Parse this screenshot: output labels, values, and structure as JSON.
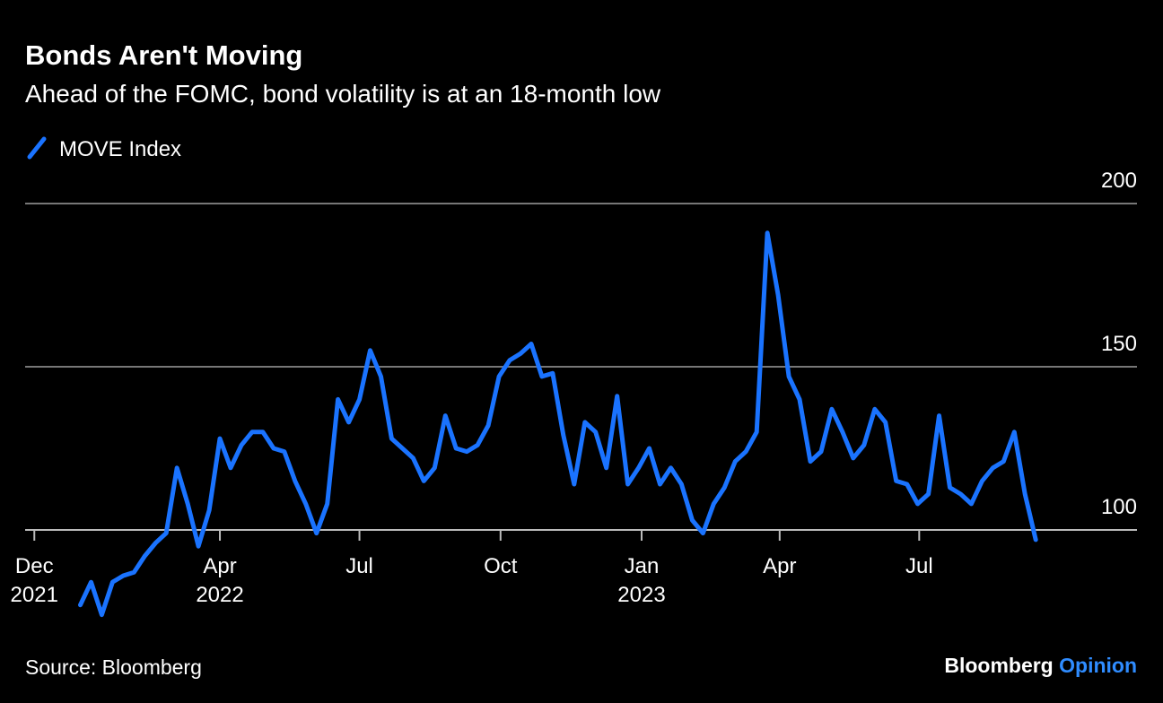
{
  "chart_data": {
    "type": "line",
    "title": "Bonds Aren't Moving",
    "subtitle": "Ahead of the FOMC, bond volatility is at an 18-month low",
    "source": "Source: Bloomberg",
    "brand": [
      "Bloomberg",
      "Opinion"
    ],
    "x": [
      "2021-12-31",
      "2022-01-07",
      "2022-01-14",
      "2022-01-21",
      "2022-01-28",
      "2022-02-04",
      "2022-02-11",
      "2022-02-18",
      "2022-02-25",
      "2022-03-04",
      "2022-03-11",
      "2022-03-18",
      "2022-03-25",
      "2022-04-01",
      "2022-04-08",
      "2022-04-15",
      "2022-04-22",
      "2022-04-29",
      "2022-05-06",
      "2022-05-13",
      "2022-05-20",
      "2022-05-27",
      "2022-06-03",
      "2022-06-10",
      "2022-06-17",
      "2022-06-24",
      "2022-07-01",
      "2022-07-08",
      "2022-07-15",
      "2022-07-22",
      "2022-07-29",
      "2022-08-05",
      "2022-08-12",
      "2022-08-19",
      "2022-08-26",
      "2022-09-02",
      "2022-09-09",
      "2022-09-16",
      "2022-09-23",
      "2022-09-30",
      "2022-10-07",
      "2022-10-14",
      "2022-10-21",
      "2022-10-28",
      "2022-11-04",
      "2022-11-11",
      "2022-11-18",
      "2022-11-25",
      "2022-12-02",
      "2022-12-09",
      "2022-12-16",
      "2022-12-23",
      "2022-12-30",
      "2023-01-06",
      "2023-01-13",
      "2023-01-20",
      "2023-01-27",
      "2023-02-03",
      "2023-02-10",
      "2023-02-17",
      "2023-02-24",
      "2023-03-03",
      "2023-03-10",
      "2023-03-17",
      "2023-03-24",
      "2023-03-31",
      "2023-04-07",
      "2023-04-14",
      "2023-04-21",
      "2023-04-28",
      "2023-05-05",
      "2023-05-12",
      "2023-05-19",
      "2023-05-26",
      "2023-06-02",
      "2023-06-09",
      "2023-06-16",
      "2023-06-23",
      "2023-06-30",
      "2023-07-07",
      "2023-07-14",
      "2023-07-21",
      "2023-07-28",
      "2023-08-04",
      "2023-08-11",
      "2023-08-18",
      "2023-08-25",
      "2023-09-01",
      "2023-09-08",
      "2023-09-15"
    ],
    "series": [
      {
        "name": "MOVE Index",
        "color": "#1a73ff",
        "values": [
          77,
          84,
          74,
          84,
          86,
          87,
          92,
          96,
          99,
          119,
          108,
          95,
          106,
          128,
          119,
          126,
          130,
          130,
          125,
          124,
          115,
          108,
          99,
          108,
          140,
          133,
          140,
          155,
          147,
          128,
          125,
          122,
          115,
          119,
          135,
          125,
          124,
          126,
          132,
          147,
          152,
          154,
          157,
          147,
          148,
          129,
          114,
          133,
          130,
          119,
          141,
          114,
          119,
          125,
          114,
          119,
          114,
          103,
          99,
          108,
          113,
          121,
          124,
          130,
          191,
          172,
          147,
          140,
          121,
          124,
          137,
          130,
          122,
          126,
          137,
          133,
          115,
          114,
          108,
          111,
          135,
          113,
          111,
          108,
          115,
          119,
          121,
          130,
          111,
          97
        ]
      }
    ],
    "xlim": [
      "2021-11-25",
      "2023-11-20"
    ],
    "xticks": [
      {
        "value": "2021-12-01",
        "label": "Dec 2021"
      },
      {
        "value": "2022-04-01",
        "label": "Apr 2022"
      },
      {
        "value": "2022-07-01",
        "label": "Jul"
      },
      {
        "value": "2022-10-01",
        "label": "Oct"
      },
      {
        "value": "2023-01-01",
        "label": "Jan 2023"
      },
      {
        "value": "2023-04-01",
        "label": "Apr"
      },
      {
        "value": "2023-07-01",
        "label": "Jul"
      }
    ],
    "ylim": [
      100,
      200
    ],
    "yticks": [
      100,
      150,
      200
    ],
    "grid": true
  }
}
